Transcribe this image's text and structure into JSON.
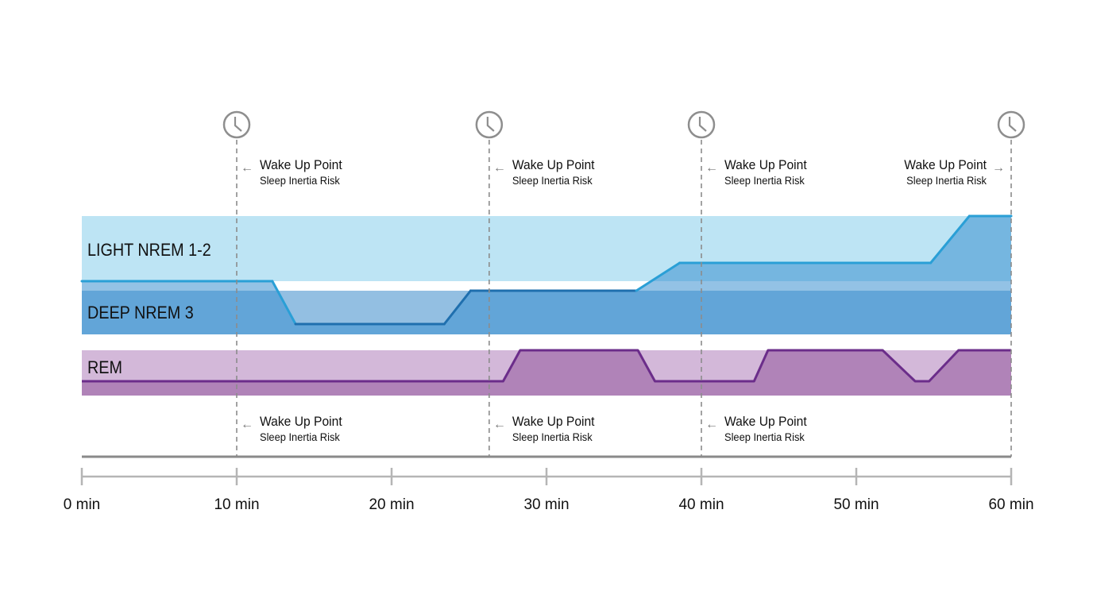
{
  "chart_data": {
    "type": "area",
    "x_axis": {
      "range": [
        0,
        60
      ],
      "unit": "min",
      "ticks": [
        0,
        10,
        20,
        30,
        40,
        50,
        60
      ],
      "tick_labels": [
        "0 min",
        "10 min",
        "20 min",
        "30 min",
        "40 min",
        "50 min",
        "60 min"
      ]
    },
    "bands": [
      {
        "key": "light",
        "label": "LIGHT NREM 1-2",
        "color": "#bde4f4"
      },
      {
        "key": "deep",
        "label": "DEEP NREM 3",
        "color": "#93bfe2"
      },
      {
        "key": "rem",
        "label": "REM",
        "color": "#d3b8d9"
      }
    ],
    "series": [
      {
        "key": "nrem",
        "color": "#2a9fd6",
        "deep_color": "#1f6fae",
        "fill": "#3a8fd0",
        "points": [
          {
            "t": 0,
            "level": "light-bottom"
          },
          {
            "t": 12.3,
            "level": "light-bottom"
          },
          {
            "t": 13.8,
            "level": "deep-low"
          },
          {
            "t": 23.4,
            "level": "deep-low"
          },
          {
            "t": 25.1,
            "level": "deep-top"
          },
          {
            "t": 35.8,
            "level": "deep-top"
          },
          {
            "t": 38.6,
            "level": "light-mid"
          },
          {
            "t": 54.8,
            "level": "light-mid"
          },
          {
            "t": 57.3,
            "level": "light-top"
          },
          {
            "t": 60,
            "level": "light-top"
          }
        ]
      },
      {
        "key": "rem",
        "color": "#6b2d8a",
        "fill": "#b083b8",
        "points": [
          {
            "t": 0,
            "level": "rem-low"
          },
          {
            "t": 27.2,
            "level": "rem-low"
          },
          {
            "t": 28.3,
            "level": "rem-top"
          },
          {
            "t": 35.9,
            "level": "rem-top"
          },
          {
            "t": 37.0,
            "level": "rem-low"
          },
          {
            "t": 43.4,
            "level": "rem-low"
          },
          {
            "t": 44.3,
            "level": "rem-top"
          },
          {
            "t": 51.7,
            "level": "rem-top"
          },
          {
            "t": 53.8,
            "level": "rem-low"
          },
          {
            "t": 54.7,
            "level": "rem-low"
          },
          {
            "t": 56.6,
            "level": "rem-top"
          },
          {
            "t": 60,
            "level": "rem-top"
          }
        ]
      }
    ],
    "wake_points": [
      {
        "t": 10,
        "title": "Wake Up Point",
        "subtitle": "Sleep Inertia Risk",
        "icon": "clock-icon",
        "top": true,
        "bottom": true,
        "arrow": "left"
      },
      {
        "t": 26.3,
        "title": "Wake Up Point",
        "subtitle": "Sleep Inertia Risk",
        "icon": "clock-icon",
        "top": true,
        "bottom": true,
        "arrow": "left"
      },
      {
        "t": 40,
        "title": "Wake Up Point",
        "subtitle": "Sleep Inertia Risk",
        "icon": "clock-icon",
        "top": true,
        "bottom": true,
        "arrow": "left"
      },
      {
        "t": 60,
        "title": "Wake Up Point",
        "subtitle": "Sleep Inertia Risk",
        "icon": "clock-icon",
        "top": true,
        "bottom": false,
        "arrow": "right"
      }
    ],
    "colors": {
      "guide": "#8c8c8c",
      "axis": "#8a8a8a",
      "ticks": "#b5b5b5"
    }
  }
}
